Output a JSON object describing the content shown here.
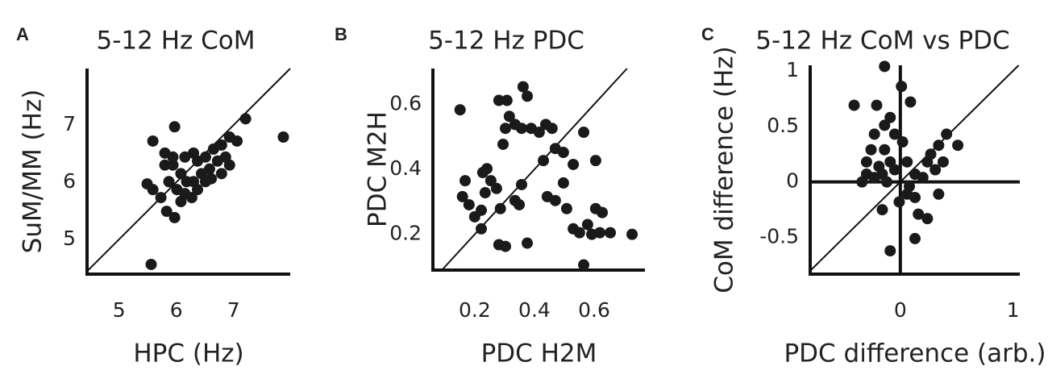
{
  "chart_data": [
    {
      "type": "scatter",
      "label": "A",
      "title": "5-12 Hz CoM",
      "x_label": "HPC (Hz)",
      "y_label": "SuM/MM (Hz)",
      "color": "#1a1a1a",
      "xlim": [
        4.44,
        7.99
      ],
      "ylim": [
        4.39,
        7.99
      ],
      "xticks": [
        5,
        6,
        7
      ],
      "yticks": [
        5,
        6,
        7
      ],
      "identity_line": true,
      "zero_lines": false,
      "x": [
        5.56,
        5.59,
        5.97,
        5.49,
        5.59,
        5.73,
        5.83,
        5.97,
        5.8,
        5.94,
        6.08,
        6.15,
        6.3,
        6.37,
        6.51,
        6.58,
        6.65,
        6.79,
        6.72,
        6.86,
        6.93,
        7.21,
        7.87,
        5.87,
        6.01,
        6.15,
        6.3,
        6.44,
        6.61,
        6.79,
        6.93,
        7.06,
        6.18,
        6.37,
        6.51,
        6.08,
        6.27,
        5.8,
        5.94
      ],
      "y": [
        4.56,
        6.72,
        6.97,
        5.97,
        5.87,
        5.73,
        5.49,
        5.38,
        6.51,
        6.3,
        6.15,
        6.44,
        6.51,
        6.37,
        6.44,
        6.23,
        6.58,
        6.65,
        6.37,
        6.44,
        6.79,
        7.11,
        6.79,
        6.01,
        5.87,
        5.8,
        6.01,
        6.15,
        6.06,
        6.15,
        6.3,
        6.72,
        6.01,
        5.87,
        6.01,
        5.66,
        5.73,
        6.3,
        6.44
      ]
    },
    {
      "type": "scatter",
      "label": "B",
      "title": "5-12 Hz PDC",
      "x_label": "PDC H2M",
      "y_label": "PDC M2H",
      "color": "#1a1a1a",
      "xlim": [
        0.06,
        0.77
      ],
      "ylim": [
        0.09,
        0.71
      ],
      "xticks": [
        0.2,
        0.4,
        0.6
      ],
      "yticks": [
        0.2,
        0.4,
        0.6
      ],
      "identity_line": true,
      "zero_lines": false,
      "x": [
        0.151,
        0.168,
        0.159,
        0.181,
        0.2,
        0.222,
        0.235,
        0.241,
        0.254,
        0.273,
        0.286,
        0.227,
        0.222,
        0.281,
        0.308,
        0.295,
        0.316,
        0.303,
        0.335,
        0.362,
        0.376,
        0.357,
        0.389,
        0.416,
        0.438,
        0.459,
        0.43,
        0.47,
        0.497,
        0.53,
        0.605,
        0.565,
        0.335,
        0.349,
        0.281,
        0.303,
        0.376,
        0.443,
        0.47,
        0.508,
        0.53,
        0.551,
        0.578,
        0.605,
        0.627,
        0.592,
        0.619,
        0.654,
        0.727,
        0.565,
        0.497,
        0.357
      ],
      "y": [
        0.583,
        0.365,
        0.316,
        0.291,
        0.254,
        0.274,
        0.328,
        0.402,
        0.365,
        0.341,
        0.279,
        0.39,
        0.217,
        0.612,
        0.612,
        0.477,
        0.563,
        0.526,
        0.538,
        0.654,
        0.625,
        0.526,
        0.526,
        0.514,
        0.538,
        0.526,
        0.427,
        0.464,
        0.452,
        0.415,
        0.427,
        0.514,
        0.304,
        0.291,
        0.168,
        0.163,
        0.173,
        0.316,
        0.304,
        0.279,
        0.217,
        0.205,
        0.23,
        0.279,
        0.267,
        0.2,
        0.205,
        0.205,
        0.2,
        0.106,
        0.358,
        0.353
      ]
    },
    {
      "type": "scatter",
      "label": "C",
      "title": "5-12 Hz CoM vs PDC",
      "x_label": "PDC difference (arb.)",
      "y_label": "CoM difference (Hz)",
      "color": "#1a1a1a",
      "xlim": [
        -0.8,
        1.06
      ],
      "ylim": [
        -0.83,
        1.05
      ],
      "xticks": [
        0,
        1
      ],
      "yticks": [
        -0.5,
        0,
        0.5,
        1
      ],
      "identity_line": true,
      "zero_lines": true,
      "x": [
        -0.14,
        0.01,
        -0.41,
        -0.21,
        0.09,
        -0.14,
        -0.09,
        -0.23,
        -0.05,
        0.02,
        -0.26,
        -0.14,
        -0.3,
        -0.19,
        -0.09,
        -0.3,
        -0.23,
        -0.16,
        -0.12,
        -0.05,
        0.06,
        0.13,
        0.2,
        0.24,
        0.27,
        0.34,
        0.41,
        0.51,
        0.38,
        0.31,
        0.06,
        0.13,
        0.16,
        0.24,
        0.34,
        0.13,
        -0.09,
        -0.16,
        -0.01,
        -0.34,
        0.08
      ],
      "y": [
        1.04,
        0.86,
        0.69,
        0.69,
        0.72,
        0.51,
        0.58,
        0.43,
        0.43,
        0.36,
        0.29,
        0.29,
        0.18,
        0.14,
        0.18,
        0.07,
        0.04,
        0.07,
        0.0,
        0.11,
        0.18,
        0.07,
        0.04,
        0.18,
        0.25,
        0.33,
        0.43,
        0.33,
        0.18,
        0.11,
        -0.11,
        -0.14,
        -0.29,
        -0.33,
        -0.11,
        -0.51,
        -0.62,
        -0.25,
        -0.18,
        0.0,
        -0.04
      ]
    }
  ]
}
